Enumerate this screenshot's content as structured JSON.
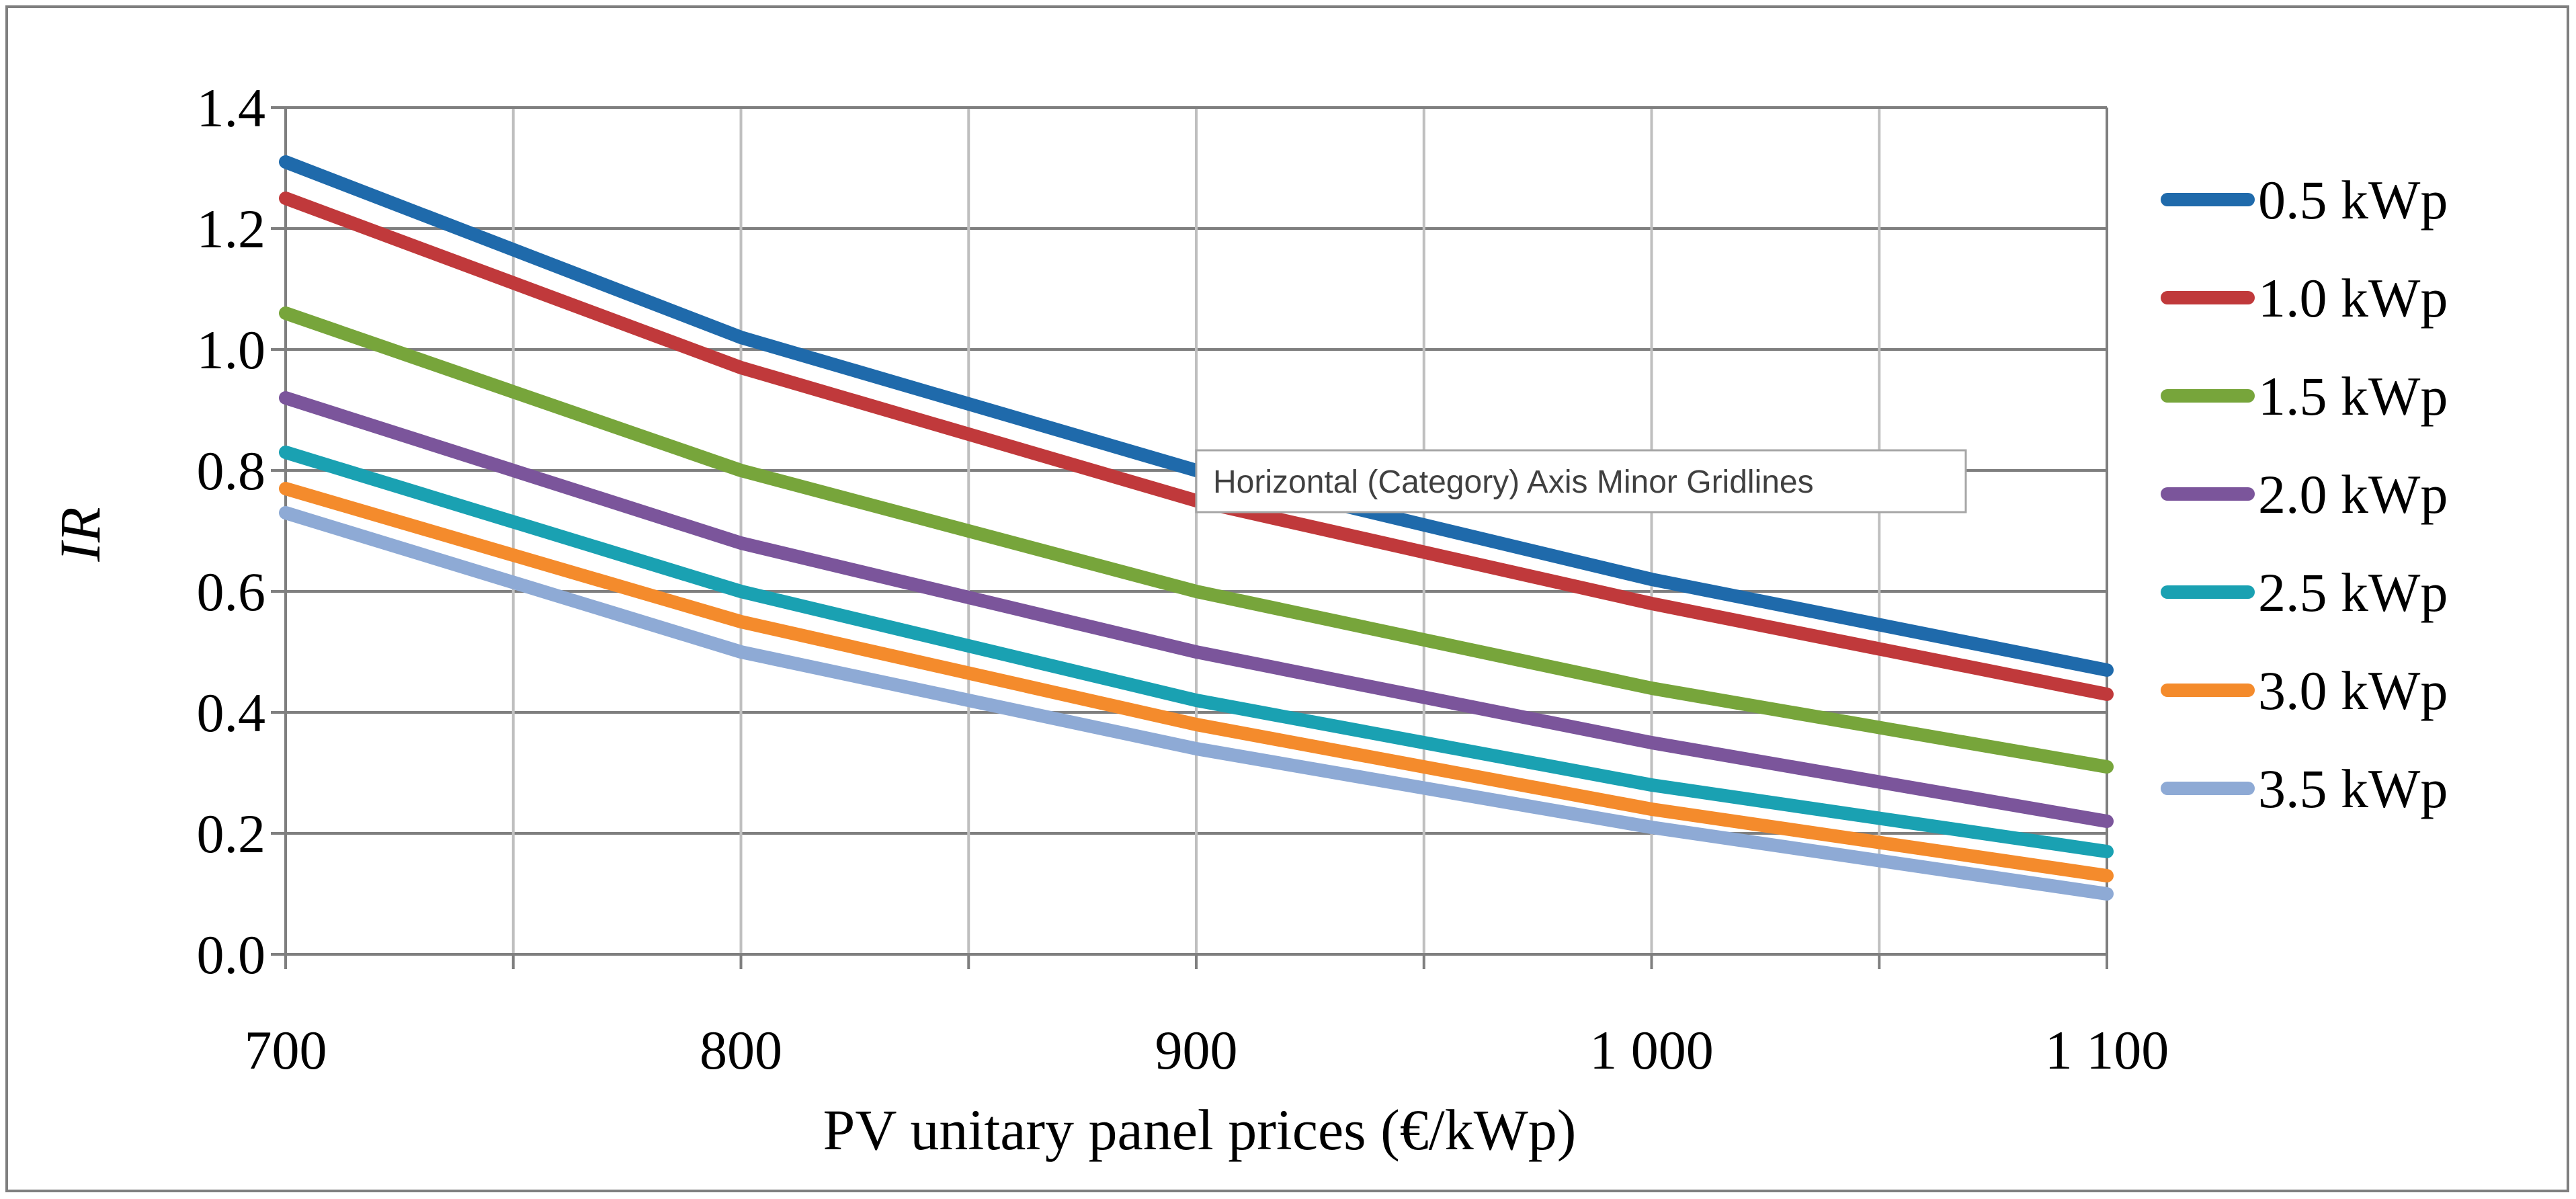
{
  "chart_data": {
    "type": "line",
    "title": "",
    "xlabel": "PV unitary panel prices (€/kWp)",
    "ylabel": "IR",
    "x": [
      700,
      800,
      900,
      1000,
      1100
    ],
    "x_tick_labels": [
      "700",
      "800",
      "900",
      "1 000",
      "1 100"
    ],
    "xlim": [
      700,
      1100
    ],
    "ylim": [
      0,
      1.4
    ],
    "y_tick_labels": [
      "0.0",
      "0.2",
      "0.4",
      "0.6",
      "0.8",
      "1.0",
      "1.2",
      "1.4"
    ],
    "grid": true,
    "legend_position": "right",
    "series": [
      {
        "name": "0.5 kWp",
        "color": "#1f6aab",
        "values": [
          1.31,
          1.02,
          0.8,
          0.62,
          0.47
        ]
      },
      {
        "name": "1.0 kWp",
        "color": "#c0393b",
        "values": [
          1.25,
          0.97,
          0.75,
          0.58,
          0.43
        ]
      },
      {
        "name": "1.5 kWp",
        "color": "#77a53b",
        "values": [
          1.06,
          0.8,
          0.6,
          0.44,
          0.31
        ]
      },
      {
        "name": "2.0 kWp",
        "color": "#7b559b",
        "values": [
          0.92,
          0.68,
          0.5,
          0.35,
          0.22
        ]
      },
      {
        "name": "2.5 kWp",
        "color": "#1aa1b2",
        "values": [
          0.83,
          0.6,
          0.42,
          0.28,
          0.17
        ]
      },
      {
        "name": "3.0 kWp",
        "color": "#f48b2c",
        "values": [
          0.77,
          0.55,
          0.38,
          0.24,
          0.13
        ]
      },
      {
        "name": "3.5 kWp",
        "color": "#8eaad5",
        "values": [
          0.73,
          0.5,
          0.34,
          0.21,
          0.1
        ]
      }
    ]
  },
  "tooltip": {
    "text": "Horizontal (Category) Axis Minor Gridlines"
  }
}
